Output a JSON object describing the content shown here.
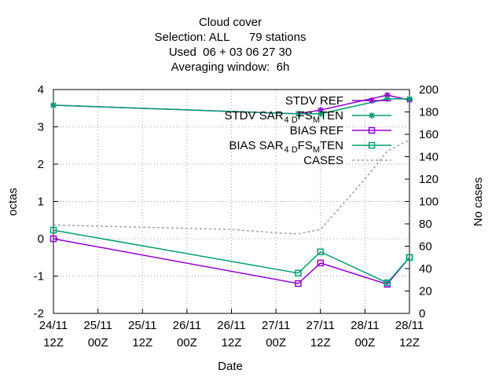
{
  "chart_data": {
    "type": "line",
    "title_lines": [
      "Cloud cover",
      "Selection: ALL      79 stations",
      "Used  06 + 03 06 27 30",
      "Averaging window:  6h"
    ],
    "xlabel": "Date",
    "ylabel": "octas",
    "y2label": "No cases",
    "ylim": [
      -2,
      4
    ],
    "y2lim": [
      0,
      200
    ],
    "yticks": [
      -2,
      -1,
      0,
      1,
      2,
      3,
      4
    ],
    "y2ticks": [
      0,
      20,
      40,
      60,
      80,
      100,
      120,
      140,
      160,
      180,
      200
    ],
    "xlim": [
      0,
      96
    ],
    "xticks": [
      {
        "x": 0,
        "line1": "24/11",
        "line2": "12Z"
      },
      {
        "x": 12,
        "line1": "25/11",
        "line2": "00Z"
      },
      {
        "x": 24,
        "line1": "25/11",
        "line2": "12Z"
      },
      {
        "x": 36,
        "line1": "26/11",
        "line2": "00Z"
      },
      {
        "x": 48,
        "line1": "26/11",
        "line2": "12Z"
      },
      {
        "x": 60,
        "line1": "27/11",
        "line2": "00Z"
      },
      {
        "x": 72,
        "line1": "27/11",
        "line2": "12Z"
      },
      {
        "x": 84,
        "line1": "28/11",
        "line2": "00Z"
      },
      {
        "x": 96,
        "line1": "28/11",
        "line2": "12Z"
      }
    ],
    "grid": true,
    "legend_position": "top-right",
    "series": [
      {
        "name_parts": [
          "STDV REF"
        ],
        "color": "#9400d3",
        "marker": "star",
        "axis": "y",
        "x": [
          0,
          66,
          72,
          90,
          96
        ],
        "values": [
          3.58,
          3.35,
          3.45,
          3.85,
          3.72
        ]
      },
      {
        "name_parts": [
          "STDV SAR",
          "4 D",
          "FS",
          "M",
          "TEN"
        ],
        "color": "#009e73",
        "marker": "star",
        "axis": "y",
        "x": [
          0,
          66,
          72,
          90,
          96
        ],
        "values": [
          3.58,
          3.35,
          3.35,
          3.75,
          3.75
        ]
      },
      {
        "name_parts": [
          "BIAS REF"
        ],
        "color": "#9400d3",
        "marker": "square",
        "axis": "y",
        "x": [
          0,
          66,
          72,
          90,
          96
        ],
        "values": [
          0.0,
          -1.2,
          -0.65,
          -1.22,
          -0.5
        ]
      },
      {
        "name_parts": [
          "BIAS SAR",
          "4 D",
          "FS",
          "M",
          "TEN"
        ],
        "color": "#009e73",
        "marker": "square",
        "axis": "y",
        "x": [
          0,
          66,
          72,
          90,
          96
        ],
        "values": [
          0.23,
          -0.92,
          -0.35,
          -1.18,
          -0.5
        ]
      },
      {
        "name_parts": [
          "CASES"
        ],
        "color": "#a0a0a0",
        "marker": "none",
        "dashed": true,
        "axis": "y2",
        "x": [
          0,
          12,
          24,
          36,
          48,
          60,
          66,
          72,
          84,
          90,
          96
        ],
        "values": [
          79,
          78,
          77,
          76,
          75,
          72,
          71,
          75,
          120,
          145,
          155
        ]
      }
    ]
  }
}
